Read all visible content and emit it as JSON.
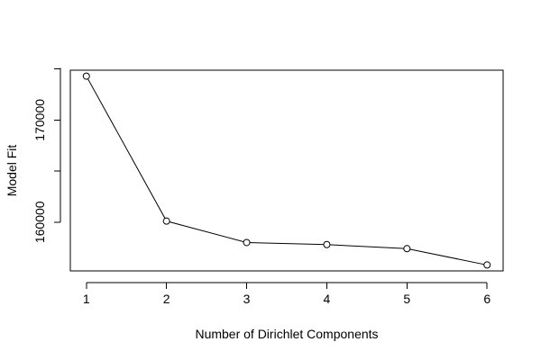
{
  "chart_data": {
    "type": "line",
    "title": "",
    "xlabel": "Number of Dirichlet Components",
    "ylabel": "Model Fit",
    "x": [
      1,
      2,
      3,
      4,
      5,
      6
    ],
    "series": [
      {
        "values": [
          174300,
          160100,
          158000,
          157800,
          157400,
          155800
        ]
      }
    ],
    "x_ticks": [
      1,
      2,
      3,
      4,
      5,
      6
    ],
    "y_ticks": [
      160000,
      170000
    ],
    "xlim": [
      0.8,
      6.2
    ],
    "ylim": [
      155221,
      174879
    ],
    "grid": false,
    "legend": "none",
    "colors": {
      "line": "#000000",
      "point_fill": "#ffffff",
      "point_stroke": "#000000"
    }
  }
}
